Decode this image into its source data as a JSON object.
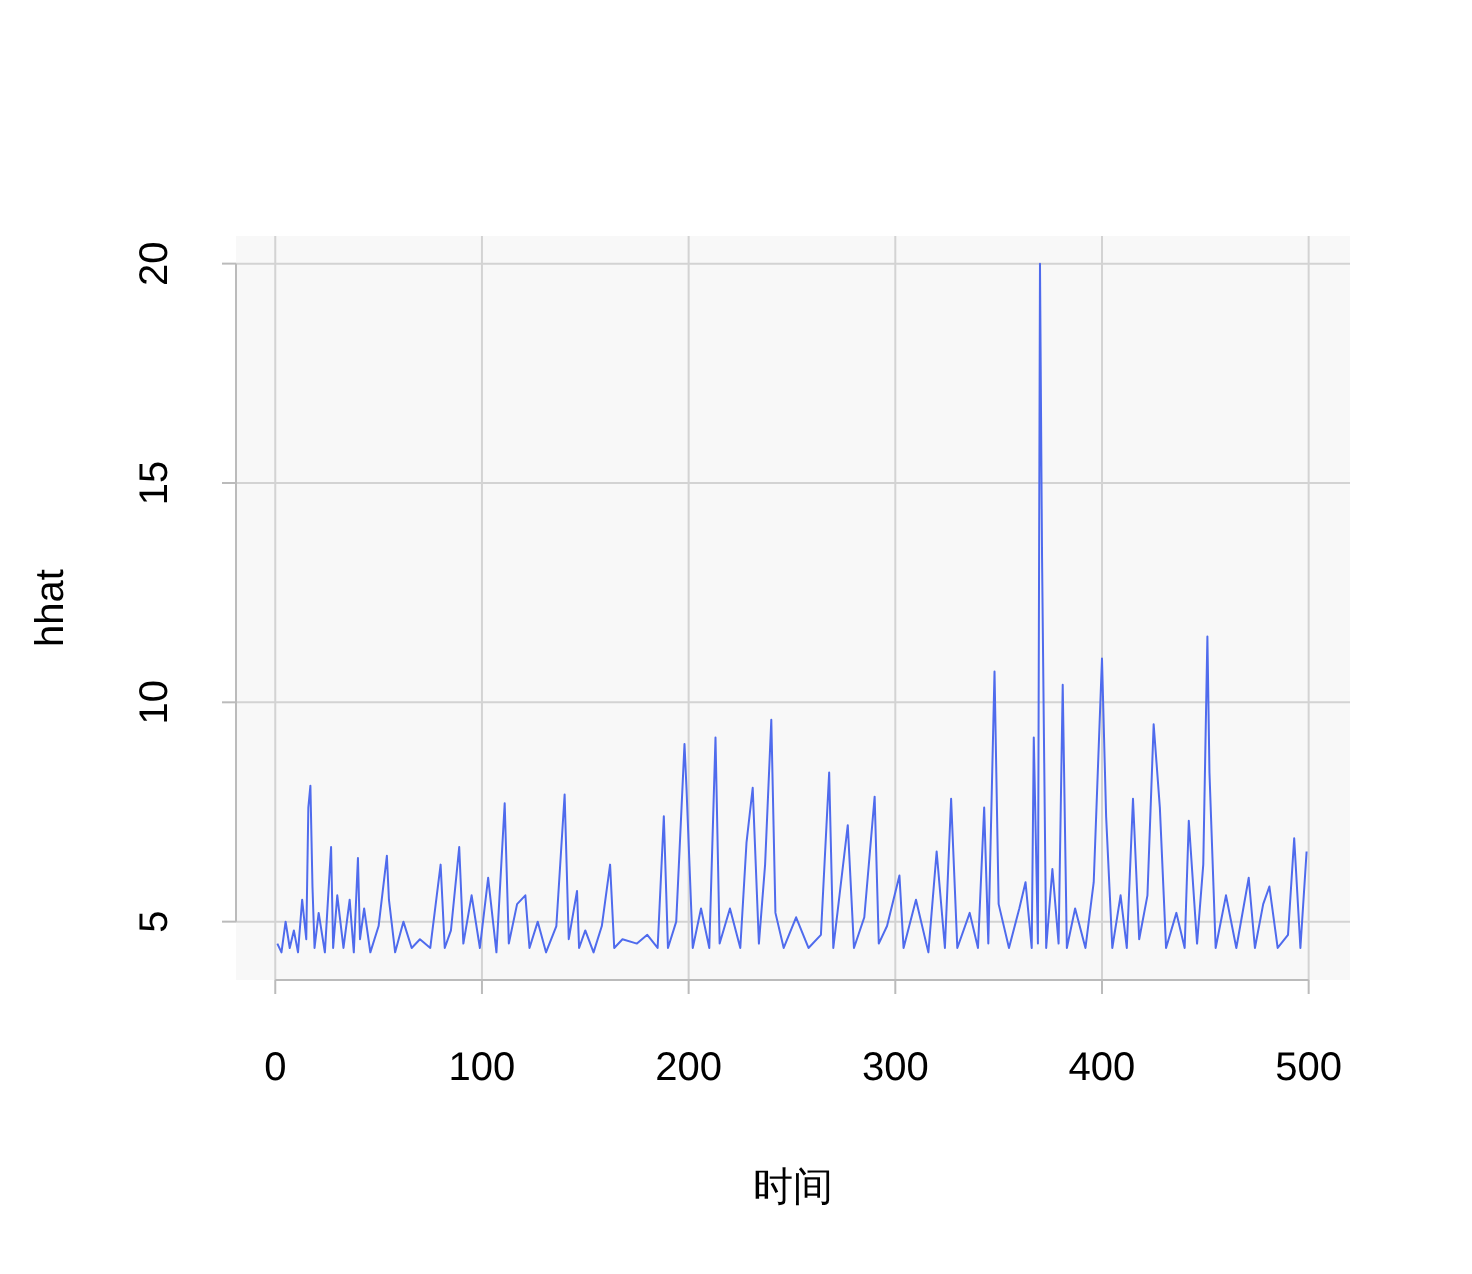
{
  "chart_data": {
    "type": "line",
    "xlabel": "时间",
    "ylabel": "hhat",
    "xlim": [
      -19,
      520
    ],
    "ylim": [
      3.67,
      20.63
    ],
    "xticks": [
      0,
      100,
      200,
      300,
      400,
      500
    ],
    "yticks": [
      5,
      10,
      15,
      20
    ],
    "grid": true,
    "x": [
      1,
      3,
      5,
      7,
      9,
      11,
      13,
      15,
      16,
      17,
      18,
      19,
      21,
      24,
      27,
      28,
      30,
      33,
      36,
      38,
      40,
      41,
      43,
      46,
      50,
      54,
      55,
      58,
      62,
      66,
      70,
      75,
      80,
      82,
      85,
      89,
      91,
      95,
      99,
      103,
      107,
      111,
      113,
      117,
      121,
      123,
      127,
      131,
      136,
      140,
      142,
      146,
      147,
      150,
      154,
      158,
      162,
      164,
      168,
      175,
      180,
      185,
      188,
      190,
      194,
      198,
      199,
      202,
      206,
      210,
      213,
      215,
      220,
      225,
      228,
      231,
      234,
      237,
      240,
      242,
      246,
      252,
      258,
      264,
      268,
      270,
      273,
      277,
      280,
      285,
      290,
      292,
      296,
      302,
      304,
      310,
      316,
      320,
      324,
      327,
      330,
      336,
      340,
      343,
      345,
      348,
      350,
      355,
      360,
      363,
      366,
      367,
      369,
      370,
      371,
      373,
      376,
      379,
      381,
      383,
      387,
      392,
      396,
      400,
      402,
      405,
      409,
      412,
      415,
      418,
      422,
      425,
      428,
      431,
      436,
      440,
      442,
      446,
      449,
      451,
      452,
      455,
      460,
      465,
      471,
      474,
      478,
      481,
      485,
      490,
      493,
      496,
      499
    ],
    "series": [
      {
        "color": "#4f6bed",
        "values": [
          4.5,
          4.3,
          5.0,
          4.4,
          4.8,
          4.3,
          5.5,
          4.6,
          7.6,
          8.1,
          5.8,
          4.4,
          5.2,
          4.3,
          6.7,
          4.4,
          5.6,
          4.4,
          5.5,
          4.3,
          6.45,
          4.6,
          5.3,
          4.3,
          4.9,
          6.5,
          5.5,
          4.3,
          5.0,
          4.4,
          4.6,
          4.4,
          6.3,
          4.4,
          4.8,
          6.7,
          4.5,
          5.6,
          4.4,
          6.0,
          4.3,
          7.7,
          4.5,
          5.4,
          5.6,
          4.4,
          5.0,
          4.3,
          4.9,
          7.9,
          4.6,
          5.7,
          4.4,
          4.8,
          4.3,
          4.9,
          6.3,
          4.4,
          4.6,
          4.5,
          4.7,
          4.4,
          7.4,
          4.4,
          5.0,
          9.05,
          8.0,
          4.4,
          5.3,
          4.4,
          9.2,
          4.5,
          5.3,
          4.4,
          6.8,
          8.05,
          4.5,
          6.3,
          9.6,
          5.2,
          4.4,
          5.1,
          4.4,
          4.7,
          8.4,
          4.4,
          5.6,
          7.2,
          4.4,
          5.1,
          7.85,
          4.5,
          4.9,
          6.05,
          4.4,
          5.5,
          4.3,
          6.6,
          4.4,
          7.8,
          4.4,
          5.2,
          4.4,
          7.6,
          4.5,
          10.7,
          5.4,
          4.4,
          5.3,
          5.9,
          4.4,
          9.2,
          4.5,
          20.0,
          13.3,
          4.4,
          6.2,
          4.5,
          10.4,
          4.4,
          5.3,
          4.4,
          5.9,
          11.0,
          7.4,
          4.4,
          5.6,
          4.4,
          7.8,
          4.6,
          5.6,
          9.5,
          7.6,
          4.4,
          5.2,
          4.4,
          7.3,
          4.5,
          6.3,
          11.5,
          8.4,
          4.4,
          5.6,
          4.4,
          6.0,
          4.4,
          5.4,
          5.8,
          4.4,
          4.7,
          6.9,
          4.4,
          6.6
        ]
      }
    ]
  }
}
